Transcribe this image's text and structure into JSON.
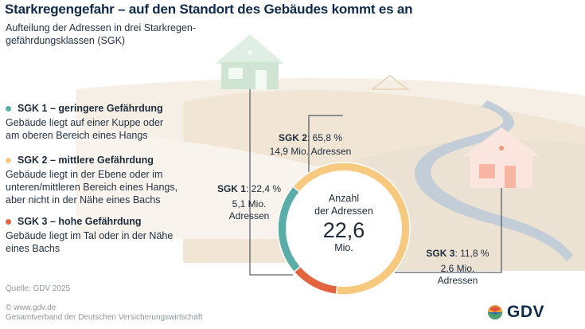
{
  "header": {
    "title": "Starkregengefahr – auf den Standort des Gebäudes kommt es an",
    "subtitle_line1": "Aufteilung der Adressen in drei Starkregen-",
    "subtitle_line2": "gefährdungsklassen (SGK)"
  },
  "legend": [
    {
      "label": "SGK 1 – geringere Gefährdung",
      "color": "#5aaca7",
      "desc1": "Gebäude liegt auf einer Kuppe oder",
      "desc2": "am oberen Bereich eines Hangs",
      "desc3": ""
    },
    {
      "label": "SGK 2 – mittlere Gefährdung",
      "color": "#f6c97f",
      "desc1": "Gebäude liegt in der Ebene oder im",
      "desc2": "unteren/mittleren Bereich eines Hangs,",
      "desc3": "aber nicht in der Nähe eines Bachs"
    },
    {
      "label": "SGK 3 – hohe Gefährdung",
      "color": "#e4643f",
      "desc1": "Gebäude liegt im Tal oder in der Nähe",
      "desc2": "eines Bachs",
      "desc3": ""
    }
  ],
  "chart_data": {
    "type": "pie",
    "variant": "donut",
    "total_label_line1": "Anzahl",
    "total_label_line2": "der Adressen",
    "total_value": "22,6",
    "total_unit": "Mio.",
    "slices": [
      {
        "name": "SGK 1",
        "percent": 22.4,
        "percent_label": "22,4 %",
        "value_mio": 5.1,
        "value_label1": "5,1 Mio.",
        "value_label2": "Adressen",
        "color": "#5aaca7"
      },
      {
        "name": "SGK 2",
        "percent": 65.8,
        "percent_label": "65,8 %",
        "value_mio": 14.9,
        "value_label1": "14,9 Mio. Adressen",
        "value_label2": "",
        "color": "#f6c97f"
      },
      {
        "name": "SGK 3",
        "percent": 11.8,
        "percent_label": "11,8 %",
        "value_mio": 2.6,
        "value_label1": "2,6 Mio.",
        "value_label2": "Adressen",
        "color": "#e4643f"
      }
    ]
  },
  "footer": {
    "source": "Quelle: GDV 2025",
    "copyright": "© www.gdv.de",
    "org": "Gesamtverband der Deutschen Versicherungswirtschaft",
    "logo_text": "GDV"
  }
}
